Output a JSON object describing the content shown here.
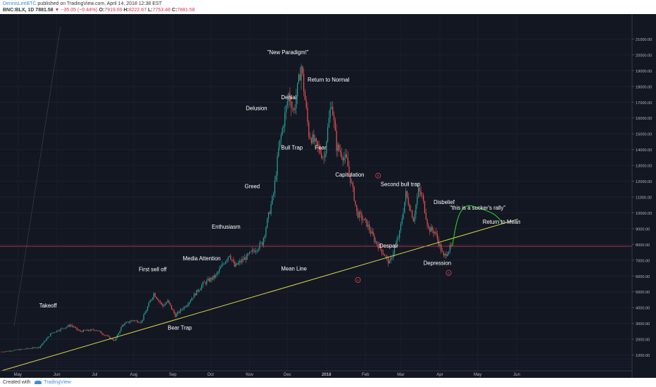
{
  "header": {
    "author": "DennisLeeBTC",
    "published": " published on TradingView.com, April 14, 2018 12:38 EST",
    "symbol": "BNC:BLX, 1D",
    "last": "7881.58",
    "change": "−35.05 (−0.44%)",
    "o_label": "O:",
    "o": "7919.69",
    "h_label": "H:",
    "h": "8222.67",
    "l_label": "L:",
    "l": "7753.48",
    "c_label": "C:",
    "c": "7881.58"
  },
  "footer": {
    "created_with": "Created with",
    "brand": "TradingView"
  },
  "colors": {
    "background": "#131722",
    "up": "#26a69a",
    "down": "#ef5350",
    "mean_line": "#d8d84a",
    "projection": "#22d022",
    "price_line": "#e04055",
    "text": "#ffffff",
    "axis_text": "#b2b5be"
  },
  "chart_data": {
    "type": "candlestick",
    "title": "",
    "xlabel": "",
    "ylabel": "",
    "ylim": [
      0,
      22000
    ],
    "y_ticks": [
      1000,
      2000,
      3000,
      4000,
      5000,
      6000,
      7000,
      8000,
      9000,
      10000,
      11000,
      12000,
      13000,
      14000,
      15000,
      16000,
      17000,
      18000,
      19000,
      20000,
      21000
    ],
    "y_tick_labels": [
      "1000.00",
      "2000.00",
      "3000.00",
      "4000.00",
      "5000.00",
      "6000.00",
      "7000.00",
      "8000.00",
      "9000.00",
      "10000.00",
      "11000.00",
      "12000.00",
      "13000.00",
      "14000.00",
      "15000.00",
      "16000.00",
      "17000.00",
      "18000.00",
      "19000.00",
      "20000.00",
      "21000.00"
    ],
    "x_ticks": [
      "May",
      "Jun",
      "Jul",
      "Aug",
      "Sep",
      "Oct",
      "Nov",
      "Dec",
      "2018",
      "Feb",
      "Mar",
      "Apr",
      "May",
      "Jun"
    ],
    "last_price_label": "7881.58",
    "last_price": 7881.58,
    "price_path_days": [
      0,
      30,
      40,
      55,
      62,
      75,
      90,
      96,
      104,
      111,
      118,
      121,
      128,
      132,
      138,
      147,
      160,
      170,
      181,
      185,
      196,
      207,
      212,
      216,
      220,
      228,
      232,
      238,
      244,
      256,
      262,
      266,
      274,
      280,
      282,
      290,
      296,
      302,
      308,
      316,
      321,
      327,
      331,
      334,
      339,
      344,
      351,
      357
    ],
    "price_path_values": [
      1200,
      1500,
      2400,
      2900,
      2500,
      2600,
      1900,
      2900,
      3200,
      3100,
      4400,
      4900,
      4100,
      4400,
      3500,
      4200,
      5500,
      6000,
      7400,
      6600,
      7300,
      8100,
      9800,
      11200,
      14000,
      17500,
      16400,
      19300,
      15000,
      13500,
      17100,
      14200,
      13300,
      11000,
      10000,
      9300,
      8300,
      7600,
      6800,
      8700,
      11200,
      9600,
      11400,
      11000,
      9000,
      8800,
      7200,
      7900
    ],
    "mean_line": {
      "from": {
        "day": 0,
        "value": 0
      },
      "to": {
        "day": 410,
        "value": 9600
      }
    },
    "projection": {
      "from": {
        "day": 358,
        "value": 7900
      },
      "peak": {
        "day": 375,
        "value": 10400
      },
      "to": {
        "day": 397,
        "value": 9400
      }
    },
    "marker_labels": {
      "a": "A",
      "b": "B",
      "c": "C"
    },
    "annotations": [
      {
        "text": "\"New Paradigm!\"",
        "day": 211,
        "value": 20050
      },
      {
        "text": "Return to Normal",
        "day": 243,
        "value": 18300
      },
      {
        "text": "Denial",
        "day": 222,
        "value": 17200
      },
      {
        "text": "Delusion",
        "day": 194,
        "value": 16500
      },
      {
        "text": "Bull Trap",
        "day": 222,
        "value": 14000
      },
      {
        "text": "Fear",
        "day": 249,
        "value": 14000
      },
      {
        "text": "Capitulation",
        "day": 265,
        "value": 12300
      },
      {
        "text": "Greed",
        "day": 193,
        "value": 11550
      },
      {
        "text": "Second bull trap",
        "day": 301,
        "value": 11700
      },
      {
        "text": "Disbelief",
        "day": 343,
        "value": 10550
      },
      {
        "text": "\"this is a sucker's rally\"",
        "day": 356,
        "value": 10200
      },
      {
        "text": "Return to Mean",
        "day": 382,
        "value": 9300
      },
      {
        "text": "Enthusiasm",
        "day": 167,
        "value": 9000
      },
      {
        "text": "Despair",
        "day": 300,
        "value": 7800
      },
      {
        "text": "Media Attention",
        "day": 144,
        "value": 7000
      },
      {
        "text": "Depression",
        "day": 335,
        "value": 6700
      },
      {
        "text": "Mean Line",
        "day": 222,
        "value": 6350
      },
      {
        "text": "First sell off",
        "day": 109,
        "value": 6300
      },
      {
        "text": "Takeoff",
        "day": 30,
        "value": 4000
      },
      {
        "text": "Bear Trap",
        "day": 132,
        "value": 2600
      }
    ]
  }
}
